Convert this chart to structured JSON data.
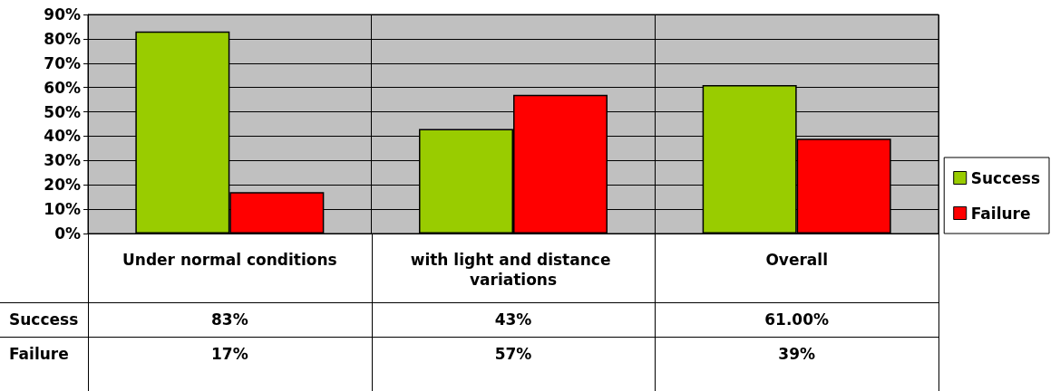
{
  "chart_data": {
    "type": "bar",
    "categories": [
      "Under normal conditions",
      "with light and distance variations",
      "Overall"
    ],
    "series": [
      {
        "name": "Success",
        "color": "#99cc00",
        "values": [
          83,
          43,
          61
        ],
        "value_labels": [
          "83%",
          "43%",
          "61.00%"
        ]
      },
      {
        "name": "Failure",
        "color": "#ff0000",
        "values": [
          17,
          57,
          39
        ],
        "value_labels": [
          "17%",
          "57%",
          "39%"
        ]
      }
    ],
    "ylim": [
      0,
      90
    ],
    "yticks": [
      {
        "value": 0,
        "label": "0%"
      },
      {
        "value": 10,
        "label": "10%"
      },
      {
        "value": 20,
        "label": "20%"
      },
      {
        "value": 30,
        "label": "30%"
      },
      {
        "value": 40,
        "label": "40%"
      },
      {
        "value": 50,
        "label": "50%"
      },
      {
        "value": 60,
        "label": "60%"
      },
      {
        "value": 70,
        "label": "70%"
      },
      {
        "value": 80,
        "label": "80%"
      },
      {
        "value": 90,
        "label": "90%"
      }
    ],
    "grid": true,
    "legend": "right"
  }
}
